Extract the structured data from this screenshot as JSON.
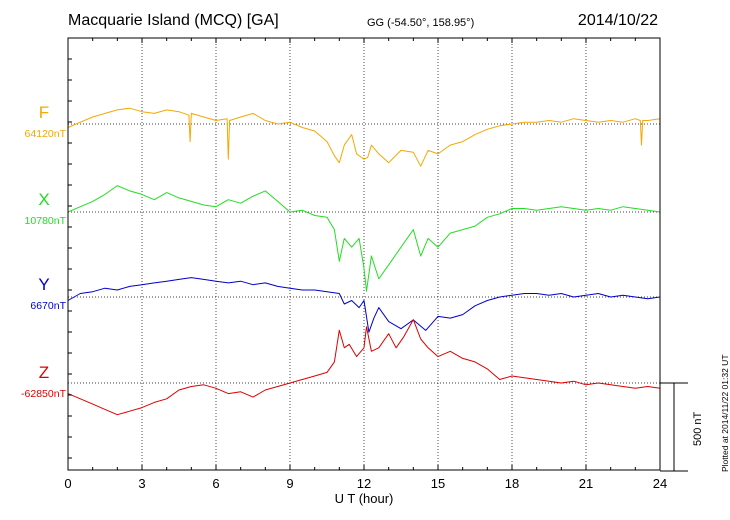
{
  "header": {
    "station": "Macquarie Island (MCQ)  [GA]",
    "coords": "GG (-54.50°, 158.95°)",
    "date": "2014/10/22"
  },
  "side_note": "Plotted at 2014/11/22 01:32 UT",
  "scale_bar_label": "500 nT",
  "chart_data": {
    "type": "line",
    "title": "Macquarie Island (MCQ)  [GA]",
    "xlabel": "U T (hour)",
    "xlim": [
      0,
      24
    ],
    "x_ticks": [
      0,
      3,
      6,
      9,
      12,
      15,
      18,
      21,
      24
    ],
    "x_tick_labels": [
      "0",
      "3",
      "6",
      "9",
      "12",
      "15",
      "18",
      "21",
      "24"
    ],
    "scale_bar_nT": 500,
    "grid": true,
    "series": [
      {
        "name": "F",
        "baseline_label": "64120nT",
        "color": "#f5a800",
        "x": [
          0,
          0.5,
          1,
          1.5,
          2,
          2.5,
          3,
          3.5,
          4,
          4.5,
          4.9,
          4.95,
          5.0,
          5.5,
          6,
          6.45,
          6.5,
          6.55,
          7,
          7.5,
          8,
          8.5,
          9,
          9.5,
          10,
          10.5,
          10.8,
          11,
          11.2,
          11.5,
          11.7,
          12,
          12.15,
          12.3,
          12.6,
          13,
          13.5,
          14,
          14.3,
          14.6,
          15,
          15.5,
          16,
          16.5,
          17,
          17.5,
          18,
          18.5,
          19,
          19.5,
          20,
          20.5,
          21,
          21.5,
          22,
          22.5,
          23,
          23.2,
          23.25,
          23.3,
          23.5,
          24
        ],
        "y": [
          -20,
          10,
          40,
          60,
          80,
          90,
          70,
          60,
          80,
          70,
          50,
          -100,
          60,
          40,
          20,
          30,
          -200,
          20,
          40,
          60,
          20,
          0,
          10,
          -20,
          -40,
          -100,
          -180,
          -220,
          -120,
          -60,
          -170,
          -200,
          -190,
          -120,
          -170,
          -220,
          -150,
          -160,
          -240,
          -150,
          -170,
          -120,
          -100,
          -60,
          -30,
          -10,
          0,
          10,
          10,
          20,
          10,
          30,
          20,
          10,
          20,
          10,
          30,
          20,
          -120,
          20,
          20,
          30
        ]
      },
      {
        "name": "X",
        "baseline_label": "10780nT",
        "color": "#22dd22",
        "x": [
          0,
          0.5,
          1,
          1.5,
          2,
          2.5,
          3,
          3.5,
          4,
          4.5,
          5,
          5.5,
          6,
          6.5,
          7,
          7.5,
          8,
          8.5,
          9,
          9.5,
          10,
          10.5,
          10.8,
          11,
          11.2,
          11.5,
          11.8,
          12,
          12.1,
          12.3,
          12.6,
          13,
          13.5,
          14,
          14.3,
          14.6,
          15,
          15.5,
          16,
          16.5,
          17,
          17.5,
          18,
          18.5,
          19,
          19.5,
          20,
          20.5,
          21,
          21.5,
          22,
          22.5,
          23,
          23.5,
          24
        ],
        "y": [
          0,
          30,
          60,
          100,
          150,
          120,
          100,
          70,
          110,
          80,
          60,
          40,
          30,
          70,
          50,
          90,
          120,
          60,
          0,
          10,
          -20,
          -30,
          -100,
          -280,
          -150,
          -200,
          -150,
          -320,
          -450,
          -250,
          -380,
          -300,
          -200,
          -100,
          -250,
          -150,
          -200,
          -120,
          -100,
          -80,
          -30,
          -10,
          20,
          20,
          10,
          20,
          30,
          20,
          10,
          20,
          10,
          30,
          20,
          10,
          0
        ]
      },
      {
        "name": "Y",
        "baseline_label": "6670nT",
        "color": "#0000cc",
        "x": [
          0,
          0.5,
          1,
          1.5,
          2,
          2.5,
          3,
          3.5,
          4,
          4.5,
          5,
          5.5,
          6,
          6.5,
          7,
          7.5,
          8,
          8.5,
          9,
          9.5,
          10,
          10.5,
          11,
          11.2,
          11.5,
          11.8,
          12,
          12.2,
          12.4,
          12.6,
          13,
          13.5,
          14,
          14.5,
          15,
          15.5,
          16,
          16.5,
          17,
          17.5,
          18,
          18.5,
          19,
          19.5,
          20,
          20.5,
          21,
          21.5,
          22,
          22.5,
          23,
          23.5,
          24
        ],
        "y": [
          -20,
          20,
          30,
          50,
          40,
          60,
          70,
          80,
          90,
          100,
          110,
          100,
          90,
          80,
          90,
          70,
          80,
          60,
          50,
          40,
          40,
          30,
          20,
          -40,
          -20,
          -60,
          -20,
          -200,
          -120,
          -60,
          -140,
          -180,
          -130,
          -190,
          -110,
          -120,
          -100,
          -50,
          -20,
          0,
          10,
          20,
          20,
          10,
          20,
          0,
          10,
          20,
          0,
          10,
          0,
          -10,
          0
        ]
      },
      {
        "name": "Z",
        "baseline_label": "-62850nT",
        "color": "#dd0000",
        "x": [
          0,
          0.5,
          1,
          1.5,
          2,
          2.5,
          3,
          3.5,
          4,
          4.5,
          5,
          5.5,
          6,
          6.5,
          7,
          7.5,
          8,
          8.5,
          9,
          9.5,
          10,
          10.5,
          10.8,
          11,
          11.2,
          11.4,
          11.7,
          12,
          12.1,
          12.3,
          12.6,
          13,
          13.3,
          13.6,
          14,
          14.3,
          14.6,
          15,
          15.5,
          16,
          16.5,
          17,
          17.5,
          18,
          18.5,
          19,
          19.5,
          20,
          20.5,
          21,
          21.5,
          22,
          22.5,
          23,
          23.5,
          24
        ],
        "y": [
          -60,
          -90,
          -120,
          -150,
          -180,
          -160,
          -140,
          -110,
          -90,
          -40,
          -20,
          -10,
          -30,
          -60,
          -50,
          -80,
          -40,
          -20,
          0,
          20,
          40,
          60,
          120,
          300,
          200,
          220,
          150,
          200,
          320,
          180,
          200,
          280,
          200,
          260,
          360,
          250,
          200,
          150,
          180,
          140,
          120,
          80,
          20,
          40,
          30,
          20,
          10,
          0,
          10,
          -10,
          0,
          -10,
          -20,
          -30,
          -20,
          -30
        ]
      }
    ]
  }
}
